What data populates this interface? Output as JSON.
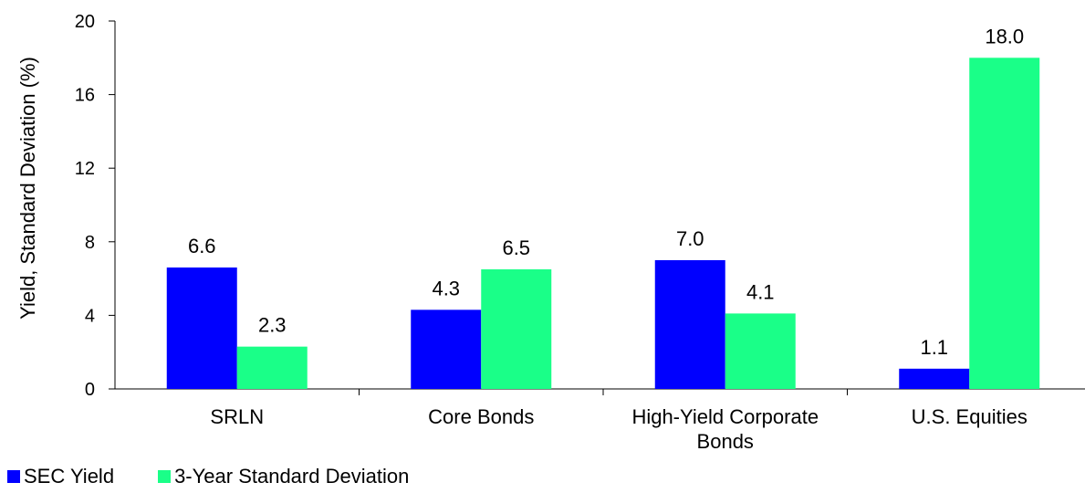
{
  "chart_data": {
    "type": "bar",
    "categories": [
      "SRLN",
      "Core Bonds",
      "High-Yield Corporate\nBonds",
      "U.S. Equities"
    ],
    "series": [
      {
        "name": "SEC Yield",
        "values": [
          6.6,
          4.3,
          7.0,
          1.1
        ],
        "color": "#0000ff"
      },
      {
        "name": "3-Year Standard Deviation",
        "values": [
          2.3,
          6.5,
          4.1,
          18.0
        ],
        "color": "#1aff88"
      }
    ],
    "data_labels": [
      [
        "6.6",
        "4.3",
        "7.0",
        "1.1"
      ],
      [
        "2.3",
        "6.5",
        "4.1",
        "18.0"
      ]
    ],
    "ylabel": "Yield, Standard Deviation (%)",
    "xlabel": "",
    "ylim": [
      0,
      20
    ],
    "yticks": [
      "0",
      "4",
      "8",
      "12",
      "16",
      "20"
    ],
    "grid": false,
    "legend_position": "bottom-left"
  }
}
